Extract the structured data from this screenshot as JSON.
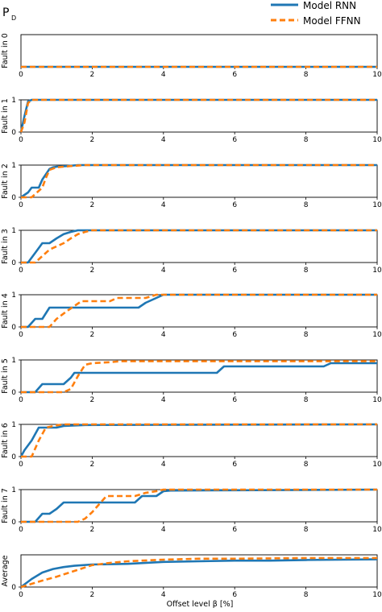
{
  "figure": {
    "label_main": "P",
    "label_sub": "D",
    "xlabel": "Offset level β [%]"
  },
  "legend": {
    "rnn_label": "Model RNN",
    "ffnn_label": "Model FFNN"
  },
  "colors": {
    "rnn": "#1f77b4",
    "ffnn": "#ff7f0e"
  },
  "chart_data": [
    {
      "type": "line",
      "ylabel": "Fault in 0",
      "xlim": [
        0,
        10
      ],
      "ylim": [
        0,
        1
      ],
      "xticks": [
        "0",
        "2",
        "4",
        "6",
        "8",
        "10"
      ],
      "yticks": [],
      "series": [
        {
          "name": "Model RNN",
          "x": [
            0,
            10
          ],
          "y": [
            0,
            0
          ]
        },
        {
          "name": "Model FFNN",
          "x": [
            0,
            10
          ],
          "y": [
            0,
            0
          ]
        }
      ]
    },
    {
      "type": "line",
      "ylabel": "Fault in 1",
      "xlim": [
        0,
        10
      ],
      "ylim": [
        0,
        1
      ],
      "xticks": [
        "0",
        "2",
        "4",
        "6",
        "8",
        "10"
      ],
      "yticks": [
        "0",
        "1"
      ],
      "series": [
        {
          "name": "Model RNN",
          "x": [
            0,
            0.1,
            0.2,
            0.3,
            10
          ],
          "y": [
            0,
            0.5,
            0.95,
            1,
            1
          ]
        },
        {
          "name": "Model FFNN",
          "x": [
            0,
            0.1,
            0.2,
            0.3,
            10
          ],
          "y": [
            0,
            0.3,
            0.9,
            1,
            1
          ]
        }
      ]
    },
    {
      "type": "line",
      "ylabel": "Fault in 2",
      "xlim": [
        0,
        10
      ],
      "ylim": [
        0,
        1
      ],
      "xticks": [
        "0",
        "2",
        "4",
        "6",
        "8",
        "10"
      ],
      "yticks": [
        "0",
        "1"
      ],
      "series": [
        {
          "name": "Model RNN",
          "x": [
            0,
            0.2,
            0.3,
            0.5,
            0.6,
            0.8,
            0.9,
            1.0,
            1.3,
            1.6,
            10
          ],
          "y": [
            0,
            0.15,
            0.3,
            0.3,
            0.55,
            0.88,
            0.93,
            0.95,
            0.97,
            1,
            1
          ]
        },
        {
          "name": "Model FFNN",
          "x": [
            0,
            0.3,
            0.4,
            0.6,
            0.7,
            0.8,
            1.0,
            1.4,
            1.8,
            10
          ],
          "y": [
            0,
            0,
            0.1,
            0.3,
            0.6,
            0.85,
            0.93,
            0.97,
            1,
            1
          ]
        }
      ]
    },
    {
      "type": "line",
      "ylabel": "Fault in 3",
      "xlim": [
        0,
        10
      ],
      "ylim": [
        0,
        1
      ],
      "xticks": [
        "0",
        "2",
        "4",
        "6",
        "8",
        "10"
      ],
      "yticks": [
        "0",
        "1"
      ],
      "series": [
        {
          "name": "Model RNN",
          "x": [
            0,
            0.2,
            0.4,
            0.6,
            0.8,
            1.0,
            1.2,
            1.4,
            1.6,
            10
          ],
          "y": [
            0,
            0,
            0.3,
            0.6,
            0.6,
            0.75,
            0.88,
            0.95,
            1,
            1
          ]
        },
        {
          "name": "Model FFNN",
          "x": [
            0,
            0.4,
            0.6,
            0.8,
            1.0,
            1.2,
            1.4,
            1.6,
            1.8,
            2.0,
            10
          ],
          "y": [
            0,
            0,
            0.2,
            0.4,
            0.5,
            0.6,
            0.75,
            0.88,
            0.95,
            1,
            1
          ]
        }
      ]
    },
    {
      "type": "line",
      "ylabel": "Fault in 4",
      "xlim": [
        0,
        10
      ],
      "ylim": [
        0,
        1
      ],
      "xticks": [
        "0",
        "2",
        "4",
        "6",
        "8",
        "10"
      ],
      "yticks": [
        "0",
        "1"
      ],
      "series": [
        {
          "name": "Model RNN",
          "x": [
            0,
            0.2,
            0.4,
            0.6,
            0.8,
            2.5,
            3.3,
            3.5,
            3.8,
            4.0,
            10
          ],
          "y": [
            0,
            0,
            0.25,
            0.25,
            0.6,
            0.6,
            0.6,
            0.75,
            0.9,
            1,
            1
          ]
        },
        {
          "name": "Model FFNN",
          "x": [
            0,
            0.8,
            1.0,
            1.3,
            1.5,
            1.7,
            2.5,
            2.7,
            3.5,
            3.8,
            10
          ],
          "y": [
            0,
            0,
            0.25,
            0.5,
            0.65,
            0.8,
            0.8,
            0.9,
            0.9,
            1,
            1
          ]
        }
      ]
    },
    {
      "type": "line",
      "ylabel": "Fault in 5",
      "xlim": [
        0,
        10
      ],
      "ylim": [
        0,
        1
      ],
      "xticks": [
        "0",
        "2",
        "4",
        "6",
        "8",
        "10"
      ],
      "yticks": [
        "0",
        "1"
      ],
      "series": [
        {
          "name": "Model RNN",
          "x": [
            0,
            0.4,
            0.6,
            1.2,
            1.4,
            1.5,
            5.5,
            5.7,
            8.5,
            8.7,
            10
          ],
          "y": [
            0,
            0,
            0.25,
            0.25,
            0.45,
            0.6,
            0.6,
            0.8,
            0.8,
            0.9,
            0.9
          ]
        },
        {
          "name": "Model FFNN",
          "x": [
            0,
            1.2,
            1.4,
            1.6,
            1.8,
            2.0,
            2.5,
            2.8,
            10
          ],
          "y": [
            0,
            0,
            0.1,
            0.5,
            0.85,
            0.9,
            0.93,
            0.96,
            0.96
          ]
        }
      ]
    },
    {
      "type": "line",
      "ylabel": "Fault in 6",
      "xlim": [
        0,
        10
      ],
      "ylim": [
        0,
        1
      ],
      "xticks": [
        "0",
        "2",
        "4",
        "6",
        "8",
        "10"
      ],
      "yticks": [
        "0",
        "1"
      ],
      "series": [
        {
          "name": "Model RNN",
          "x": [
            0,
            0.1,
            0.3,
            0.5,
            1.0,
            1.2,
            1.8,
            10
          ],
          "y": [
            0,
            0.2,
            0.5,
            0.9,
            0.9,
            0.95,
            0.98,
            1
          ]
        },
        {
          "name": "Model FFNN",
          "x": [
            0,
            0.3,
            0.5,
            0.7,
            1.0,
            1.2,
            10
          ],
          "y": [
            0,
            0,
            0.5,
            0.9,
            0.97,
            1,
            1
          ]
        }
      ]
    },
    {
      "type": "line",
      "ylabel": "Fault in 7",
      "xlim": [
        0,
        10
      ],
      "ylim": [
        0,
        1
      ],
      "xticks": [
        "0",
        "2",
        "4",
        "6",
        "8",
        "10"
      ],
      "yticks": [
        "0",
        "1"
      ],
      "series": [
        {
          "name": "Model RNN",
          "x": [
            0,
            0.4,
            0.6,
            0.8,
            1.0,
            1.2,
            3.2,
            3.4,
            3.8,
            4.0,
            4.2,
            10
          ],
          "y": [
            0,
            0,
            0.25,
            0.25,
            0.4,
            0.6,
            0.6,
            0.8,
            0.8,
            0.95,
            0.97,
            1
          ]
        },
        {
          "name": "Model FFNN",
          "x": [
            0,
            1.6,
            1.8,
            2.0,
            2.2,
            2.4,
            3.2,
            3.5,
            3.8,
            4.0,
            10
          ],
          "y": [
            0,
            0,
            0.1,
            0.3,
            0.55,
            0.8,
            0.8,
            0.9,
            0.95,
            1,
            1
          ]
        }
      ]
    },
    {
      "type": "line",
      "ylabel": "Average",
      "xlim": [
        0,
        10
      ],
      "ylim": [
        0,
        1
      ],
      "xticks": [
        "0",
        "2",
        "4",
        "6",
        "8",
        "10"
      ],
      "yticks": [
        "0"
      ],
      "series": [
        {
          "name": "Model RNN",
          "x": [
            0,
            0.3,
            0.6,
            0.9,
            1.2,
            1.5,
            2,
            3,
            4,
            5,
            6,
            7,
            8,
            9,
            10
          ],
          "y": [
            0,
            0.25,
            0.45,
            0.56,
            0.62,
            0.66,
            0.7,
            0.72,
            0.78,
            0.8,
            0.82,
            0.82,
            0.84,
            0.85,
            0.86
          ]
        },
        {
          "name": "Model FFNN",
          "x": [
            0,
            0.3,
            0.6,
            1.0,
            1.5,
            2,
            2.5,
            3,
            4,
            5,
            6,
            8,
            10
          ],
          "y": [
            0,
            0.1,
            0.2,
            0.32,
            0.5,
            0.68,
            0.75,
            0.8,
            0.85,
            0.88,
            0.88,
            0.9,
            0.9
          ]
        }
      ]
    }
  ]
}
